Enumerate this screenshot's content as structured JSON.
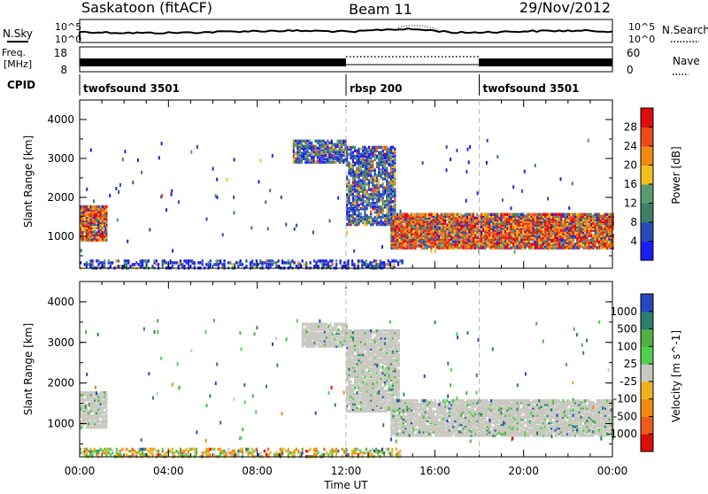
{
  "header": {
    "site": "Saskatoon (fitACF)",
    "beam": "Beam 11",
    "date": "29/Nov/2012"
  },
  "strips": {
    "nsky_label": "N.Sky",
    "nsky_ticks": [
      "10^5",
      "10^0"
    ],
    "nsearch_label": "N.Search",
    "freq_label_1": "Freq.",
    "freq_label_2": "[MHz]",
    "freq_ticks": [
      "18",
      "8"
    ],
    "nave_label": "Nave",
    "nave_ticks": [
      "60",
      "0"
    ],
    "cpid_label": "CPID",
    "cpid_segments": [
      {
        "label": "twofsound 3501",
        "start_h": 0,
        "end_h": 12
      },
      {
        "label": "rbsp 200",
        "start_h": 12,
        "end_h": 18
      },
      {
        "label": "twofsound 3501",
        "start_h": 18,
        "end_h": 24
      }
    ]
  },
  "colors": {
    "power_scale": [
      "#1c1cf5",
      "#2a4ab8",
      "#3f7f66",
      "#5a9a70",
      "#f0c020",
      "#f08a10",
      "#ee4a18",
      "#dd0d0d"
    ],
    "velocity_scale": [
      "#2548c0",
      "#2c7e70",
      "#52b045",
      "#50d050",
      "#c8c8c0",
      "#f0b020",
      "#f08a10",
      "#ee5a18",
      "#dd0d0d"
    ],
    "ground_scatter": "#c8c8c0"
  },
  "chart_data": [
    {
      "type": "heatmap",
      "name": "power",
      "xlabel": "Time UT",
      "ylabel": "Slant Range [km]",
      "xlim": [
        0,
        24
      ],
      "ylim": [
        180,
        4500
      ],
      "x_ticks": [
        "00:00",
        "04:00",
        "08:00",
        "12:00",
        "16:00",
        "20:00",
        "00:00"
      ],
      "y_ticks": [
        "1000",
        "2000",
        "3000",
        "4000"
      ],
      "colorbar_label": "Power [dB]",
      "colorbar_ticks": [
        "4",
        "8",
        "12",
        "16",
        "20",
        "24",
        "28"
      ],
      "colorbar_range": [
        0,
        30
      ],
      "regions": [
        {
          "t0": 0.0,
          "t1": 1.2,
          "r0": 900,
          "r1": 1800,
          "level": "high"
        },
        {
          "t0": 9.6,
          "t1": 12.0,
          "r0": 2900,
          "r1": 3450,
          "level": "mid"
        },
        {
          "t0": 12.0,
          "t1": 14.2,
          "r0": 1300,
          "r1": 3300,
          "level": "mid"
        },
        {
          "t0": 14.0,
          "t1": 24.0,
          "r0": 700,
          "r1": 1600,
          "level": "high"
        },
        {
          "t0": 0.0,
          "t1": 14.5,
          "r0": 180,
          "r1": 400,
          "level": "low"
        }
      ]
    },
    {
      "type": "heatmap",
      "name": "velocity",
      "xlabel": "Time UT",
      "ylabel": "Slant Range [km]",
      "xlim": [
        0,
        24
      ],
      "ylim": [
        180,
        4500
      ],
      "x_ticks": [
        "00:00",
        "04:00",
        "08:00",
        "12:00",
        "16:00",
        "20:00",
        "00:00"
      ],
      "y_ticks": [
        "1000",
        "2000",
        "3000",
        "4000"
      ],
      "colorbar_label": "Velocity [m s^-1]",
      "colorbar_ticks": [
        "1000",
        "500",
        "100",
        "25",
        "-25",
        "-100",
        "-500",
        "-1000"
      ],
      "regions": [
        {
          "t0": 0.0,
          "t1": 1.2,
          "r0": 900,
          "r1": 1800,
          "level": "ground"
        },
        {
          "t0": 10.0,
          "t1": 12.0,
          "r0": 2900,
          "r1": 3450,
          "level": "ground"
        },
        {
          "t0": 12.0,
          "t1": 14.4,
          "r0": 1300,
          "r1": 3300,
          "level": "ground"
        },
        {
          "t0": 14.0,
          "t1": 24.0,
          "r0": 700,
          "r1": 1600,
          "level": "ground"
        },
        {
          "t0": 0.0,
          "t1": 14.5,
          "r0": 180,
          "r1": 400,
          "level": "orange"
        }
      ]
    }
  ]
}
